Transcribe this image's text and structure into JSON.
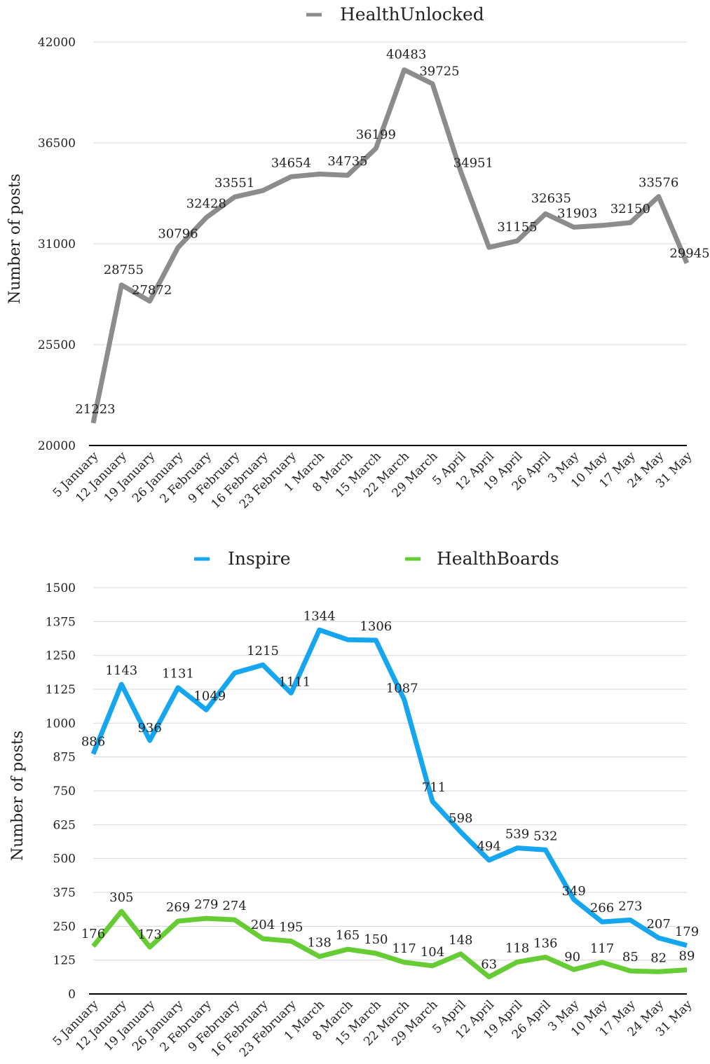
{
  "chart_data": [
    {
      "type": "line",
      "categories": [
        "5 January",
        "12 January",
        "19 January",
        "26 January",
        "2 February",
        "9 February",
        "16 February",
        "23 February",
        "1 March",
        "8 March",
        "15 March",
        "22 March",
        "29 March",
        "5 April",
        "12 April",
        "19 April",
        "26 April",
        "3 May",
        "10 May",
        "17 May",
        "24 May",
        "31 May"
      ],
      "series": [
        {
          "name": "HealthUnlocked",
          "color": "#8c8c8c",
          "values": [
            21223,
            28755,
            27872,
            30796,
            32428,
            33551,
            33900,
            34654,
            34800,
            34735,
            36199,
            40483,
            39725,
            34951,
            30800,
            31155,
            32635,
            31903,
            32000,
            32150,
            33576,
            29945
          ],
          "labels": [
            "21223",
            "28755",
            "27872",
            "30796",
            "32428",
            "33551",
            "",
            "34654",
            "",
            "34735",
            "36199",
            "40483",
            "39725",
            "34951",
            "",
            "31155",
            "32635",
            "31903",
            "",
            "32150",
            "33576",
            "29945"
          ]
        }
      ],
      "ylabel": "Number of posts",
      "ylim": [
        20000,
        42000
      ],
      "yticks": [
        "20000",
        "25500",
        "31000",
        "36500",
        "42000"
      ],
      "grid": true,
      "legend": "top"
    },
    {
      "type": "line",
      "categories": [
        "5 January",
        "12 January",
        "19 January",
        "26 January",
        "2 February",
        "9 February",
        "16 February",
        "23 February",
        "1 March",
        "8 March",
        "15 March",
        "22 March",
        "29 March",
        "5 April",
        "12 April",
        "19 April",
        "26 April",
        "3 May",
        "10 May",
        "17 May",
        "24 May",
        "31 May"
      ],
      "series": [
        {
          "name": "Inspire",
          "color": "#16a6f0",
          "values": [
            886,
            1143,
            936,
            1131,
            1049,
            1185,
            1215,
            1111,
            1344,
            1308,
            1306,
            1087,
            711,
            598,
            494,
            539,
            532,
            349,
            266,
            273,
            207,
            179
          ],
          "labels": [
            "886",
            "1143",
            "936",
            "1131",
            "1049",
            "",
            "1215",
            "1111",
            "1344",
            "",
            "1306",
            "1087",
            "711",
            "598",
            "494",
            "539",
            "532",
            "349",
            "266",
            "273",
            "207",
            "179"
          ]
        },
        {
          "name": "HealthBoards",
          "color": "#66cc33",
          "values": [
            176,
            305,
            173,
            269,
            279,
            274,
            204,
            195,
            138,
            165,
            150,
            117,
            104,
            148,
            63,
            118,
            136,
            90,
            117,
            85,
            82,
            89
          ],
          "labels": [
            "176",
            "305",
            "173",
            "269",
            "279",
            "274",
            "204",
            "195",
            "138",
            "165",
            "150",
            "117",
            "104",
            "148",
            "63",
            "118",
            "136",
            "90",
            "117",
            "85",
            "82",
            "89"
          ]
        }
      ],
      "ylabel": "Number of posts",
      "ylim": [
        0,
        1500
      ],
      "yticks": [
        "0",
        "125",
        "250",
        "375",
        "500",
        "625",
        "750",
        "875",
        "1000",
        "1125",
        "1250",
        "1375",
        "1500"
      ],
      "grid": true,
      "legend": "top"
    }
  ]
}
